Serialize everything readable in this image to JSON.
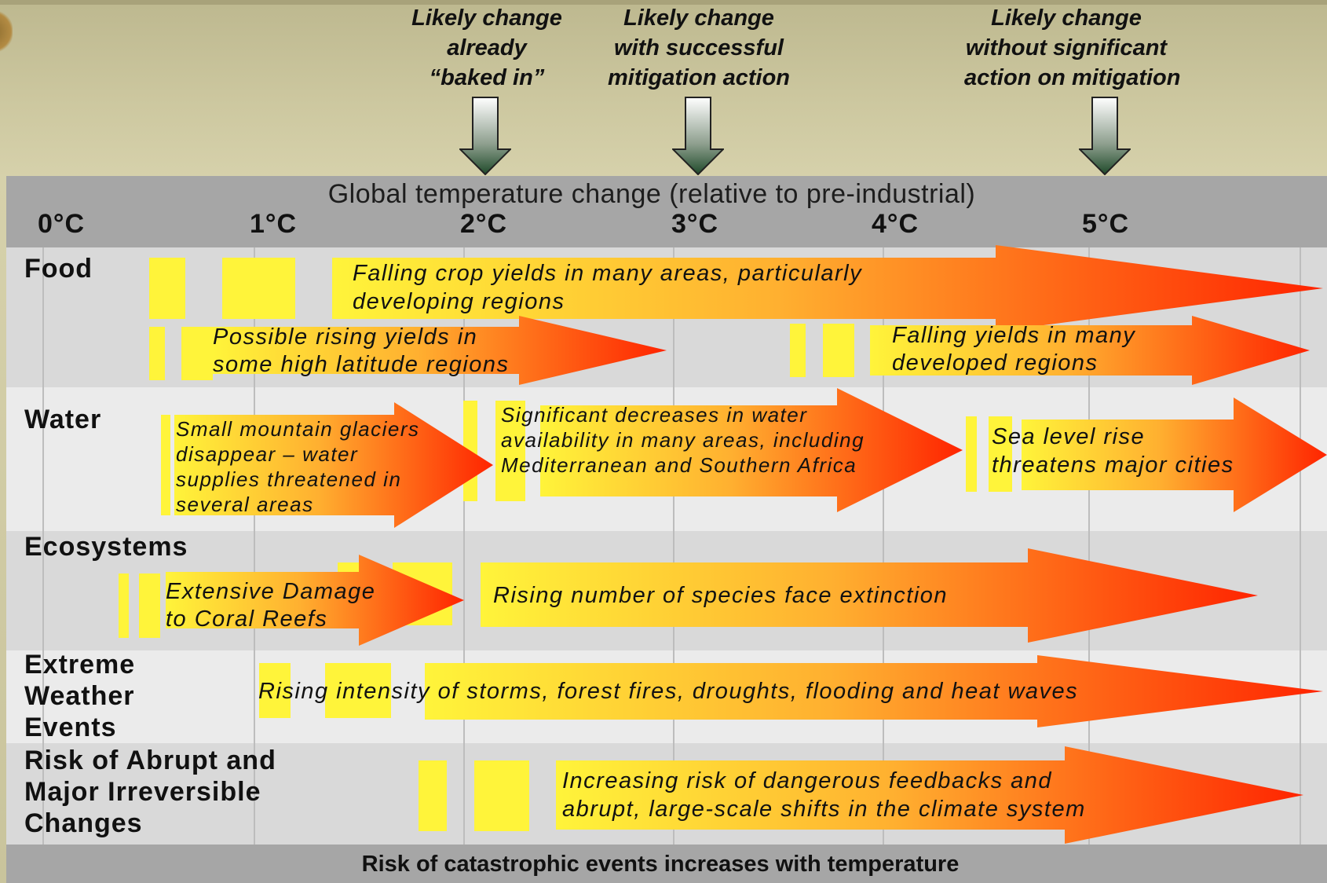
{
  "callouts": [
    {
      "text": "Likely change\nalready\n“baked in”"
    },
    {
      "text": "Likely change\nwith successful\nmitigation action"
    },
    {
      "text": "Likely change\nwithout significant\naction on mitigation"
    }
  ],
  "axis": {
    "title": "Global temperature change (relative to pre-industrial)",
    "ticks": [
      "0°C",
      "1°C",
      "2°C",
      "3°C",
      "4°C",
      "5°C"
    ]
  },
  "rows": [
    {
      "label": "Food"
    },
    {
      "label": "Water"
    },
    {
      "label": "Ecosystems"
    },
    {
      "label": "Extreme\nWeather\nEvents"
    },
    {
      "label": "Risk of Abrupt and\nMajor Irreversible\nChanges"
    }
  ],
  "impacts": {
    "food_falling_crops": "Falling crop yields in many areas, particularly\ndeveloping regions",
    "food_rising_yields": "Possible rising yields in\nsome high latitude regions",
    "food_falling_developed": "Falling yields in many\ndeveloped regions",
    "water_glaciers": "Small mountain glaciers\ndisappear – water\nsupplies threatened in\nseveral areas",
    "water_decreases": "Significant decreases in water\navailability in many areas, including\nMediterranean and Southern Africa",
    "water_sea_level": "Sea level rise\nthreatens major cities",
    "eco_coral": "Extensive Damage\nto Coral Reefs",
    "eco_species": "Rising number of species face extinction",
    "weather_storms": "Rising intensity of storms, forest fires, droughts, flooding and heat waves",
    "abrupt_feedbacks": "Increasing risk of dangerous feedbacks and\nabrupt, large-scale shifts in the climate system"
  },
  "footer": "Risk of catastrophic events increases with temperature",
  "colors": {
    "arrow_start": "#fff43a",
    "arrow_end": "#ff2400",
    "band_header": "#a6a6a6",
    "band_dark": "#d9d9d9",
    "band_light": "#ebebeb"
  }
}
